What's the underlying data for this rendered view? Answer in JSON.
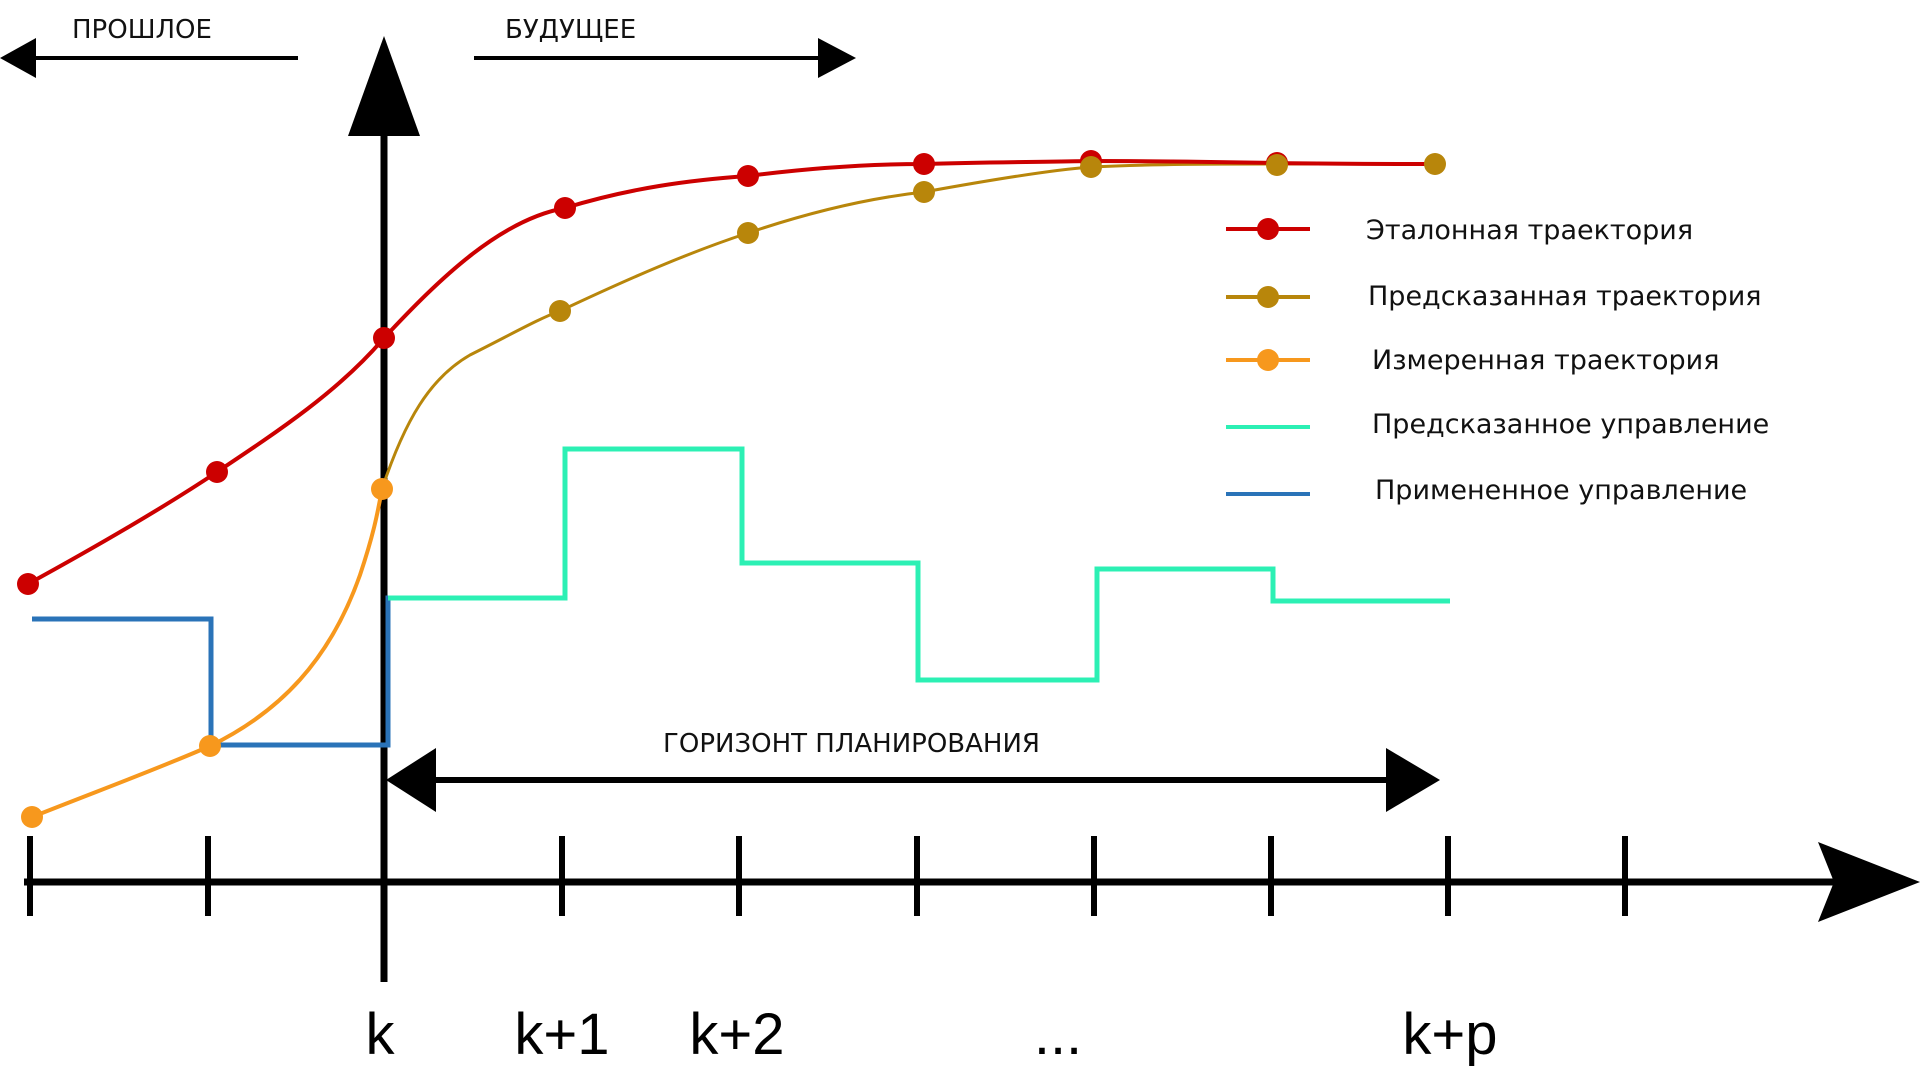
{
  "header": {
    "past_label": "ПРОШЛОЕ",
    "future_label": "БУДУЩЕЕ"
  },
  "horizon_label": "ГОРИЗОНТ ПЛАНИРОВАНИЯ",
  "x_labels": [
    "k",
    "k+1",
    "k+2",
    "...",
    "k+p"
  ],
  "legend": {
    "reference": "Эталонная траектория",
    "predicted": "Предсказанная траектория",
    "measured": "Измеренная траектория",
    "predicted_control": "Предсказанное управление",
    "applied_control": "Примененное управление"
  },
  "colors": {
    "reference": "#cc0000",
    "predicted": "#b8860b",
    "measured": "#f7981d",
    "predicted_control": "#2cf0b4",
    "applied_control": "#2a73b8",
    "axis": "#000000"
  }
}
